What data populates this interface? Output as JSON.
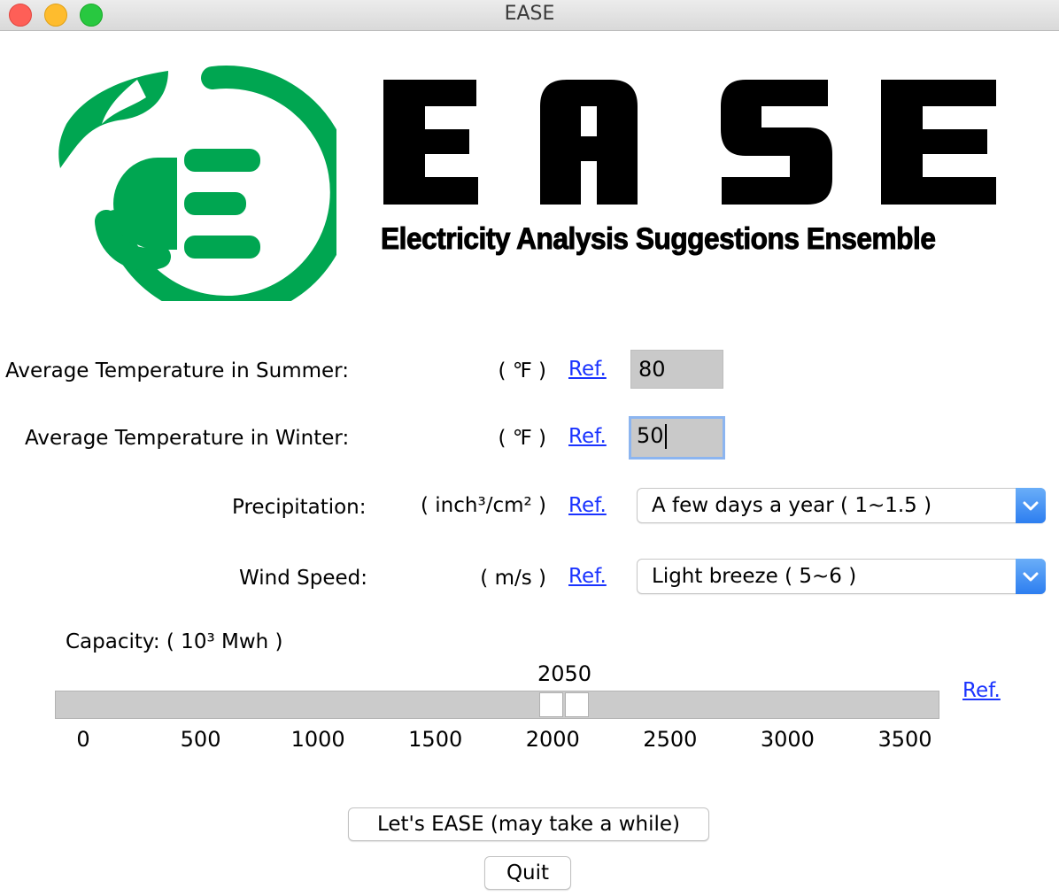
{
  "window": {
    "title": "EASE"
  },
  "logo": {
    "brand_text": "EASE",
    "subtitle": "Electricity Analysis Suggestions Ensemble",
    "brand_color": "#00a651"
  },
  "form": {
    "summer": {
      "label": "Average Temperature in Summer:",
      "unit": "( ℉ )",
      "ref": "Ref.",
      "value": "80"
    },
    "winter": {
      "label": "Average Temperature in Winter:",
      "unit": "( ℉ )",
      "ref": "Ref.",
      "value": "50"
    },
    "precip": {
      "label": "Precipitation:",
      "unit": "( inch³/cm² )",
      "ref": "Ref.",
      "selected": "A few days a year ( 1~1.5 )"
    },
    "wind": {
      "label": "Wind Speed:",
      "unit": "( m/s )",
      "ref": "Ref.",
      "selected": "Light breeze ( 5~6 )"
    },
    "capacity": {
      "label": "Capacity: ( 10³ Mwh )",
      "value_text": "2050",
      "value": 2050,
      "min": 0,
      "max": 3600,
      "ticks": [
        "0",
        "500",
        "1000",
        "1500",
        "2000",
        "2500",
        "3000",
        "3500"
      ],
      "ref": "Ref."
    }
  },
  "buttons": {
    "run": "Let's EASE (may take a while)",
    "quit": "Quit"
  },
  "icons": {
    "chevron": "chevron-down-icon"
  }
}
